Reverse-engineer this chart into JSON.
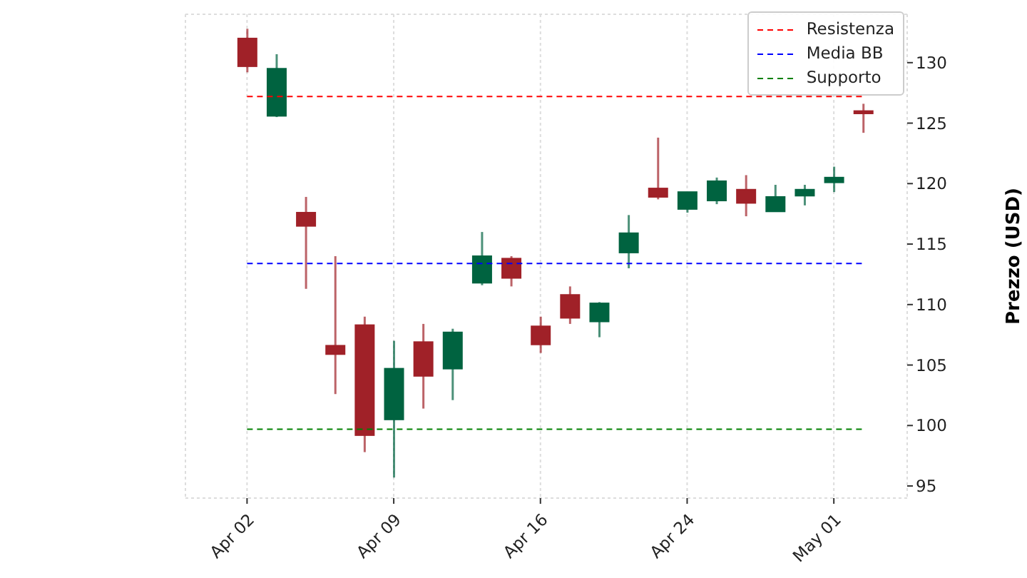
{
  "chart_data": {
    "type": "candlestick",
    "ylabel": "Prezzo (USD)",
    "categories": [
      "Apr 02",
      null,
      null,
      null,
      null,
      "Apr 09",
      null,
      null,
      null,
      null,
      "Apr 16",
      null,
      null,
      null,
      null,
      "Apr 24",
      null,
      null,
      null,
      null,
      "May 01",
      null
    ],
    "ohlc": [
      [
        132.0,
        132.8,
        129.2,
        129.7
      ],
      [
        125.6,
        130.7,
        125.5,
        129.5
      ],
      [
        117.6,
        118.9,
        111.3,
        116.5
      ],
      [
        106.6,
        114.0,
        102.6,
        105.9
      ],
      [
        108.3,
        109.0,
        97.8,
        99.2
      ],
      [
        100.5,
        107.0,
        95.7,
        104.7
      ],
      [
        106.9,
        108.4,
        101.4,
        104.1
      ],
      [
        104.7,
        108.0,
        102.1,
        107.7
      ],
      [
        111.8,
        116.0,
        111.6,
        114.0
      ],
      [
        113.8,
        114.0,
        111.5,
        112.2
      ],
      [
        108.2,
        109.0,
        106.0,
        106.7
      ],
      [
        110.8,
        111.5,
        108.4,
        108.9
      ],
      [
        108.6,
        110.2,
        107.3,
        110.1
      ],
      [
        114.3,
        117.4,
        113.0,
        115.9
      ],
      [
        119.6,
        123.8,
        118.7,
        118.9
      ],
      [
        117.9,
        119.3,
        117.6,
        119.3
      ],
      [
        118.6,
        120.5,
        118.3,
        120.2
      ],
      [
        119.5,
        120.7,
        117.3,
        118.4
      ],
      [
        117.7,
        119.9,
        117.7,
        118.9
      ],
      [
        119.0,
        119.9,
        118.2,
        119.5
      ],
      [
        120.1,
        121.4,
        119.3,
        120.5
      ],
      [
        126.0,
        126.6,
        124.2,
        125.8
      ]
    ],
    "colors": [
      "#a02128",
      "#006340",
      "#a02128",
      "#a02128",
      "#a02128",
      "#006340",
      "#a02128",
      "#006340",
      "#006340",
      "#a02128",
      "#a02128",
      "#a02128",
      "#006340",
      "#006340",
      "#a02128",
      "#006340",
      "#006340",
      "#a02128",
      "#006340",
      "#006340",
      "#006340",
      "#a02128"
    ],
    "ylim": [
      94,
      134
    ],
    "yticks": [
      95,
      100,
      105,
      110,
      115,
      120,
      125,
      130
    ],
    "ref_lines": [
      {
        "axis": "y",
        "value": 127.2,
        "label": "Resistenza",
        "color": "#ff0000",
        "line_style": "dashed"
      },
      {
        "axis": "y",
        "value": 113.4,
        "label": "Media BB",
        "color": "#0000ff",
        "line_style": "dashed"
      },
      {
        "axis": "y",
        "value": 99.7,
        "label": "Supporto",
        "color": "#008000",
        "line_style": "dashed"
      }
    ],
    "grid": true,
    "legend": "top right"
  }
}
